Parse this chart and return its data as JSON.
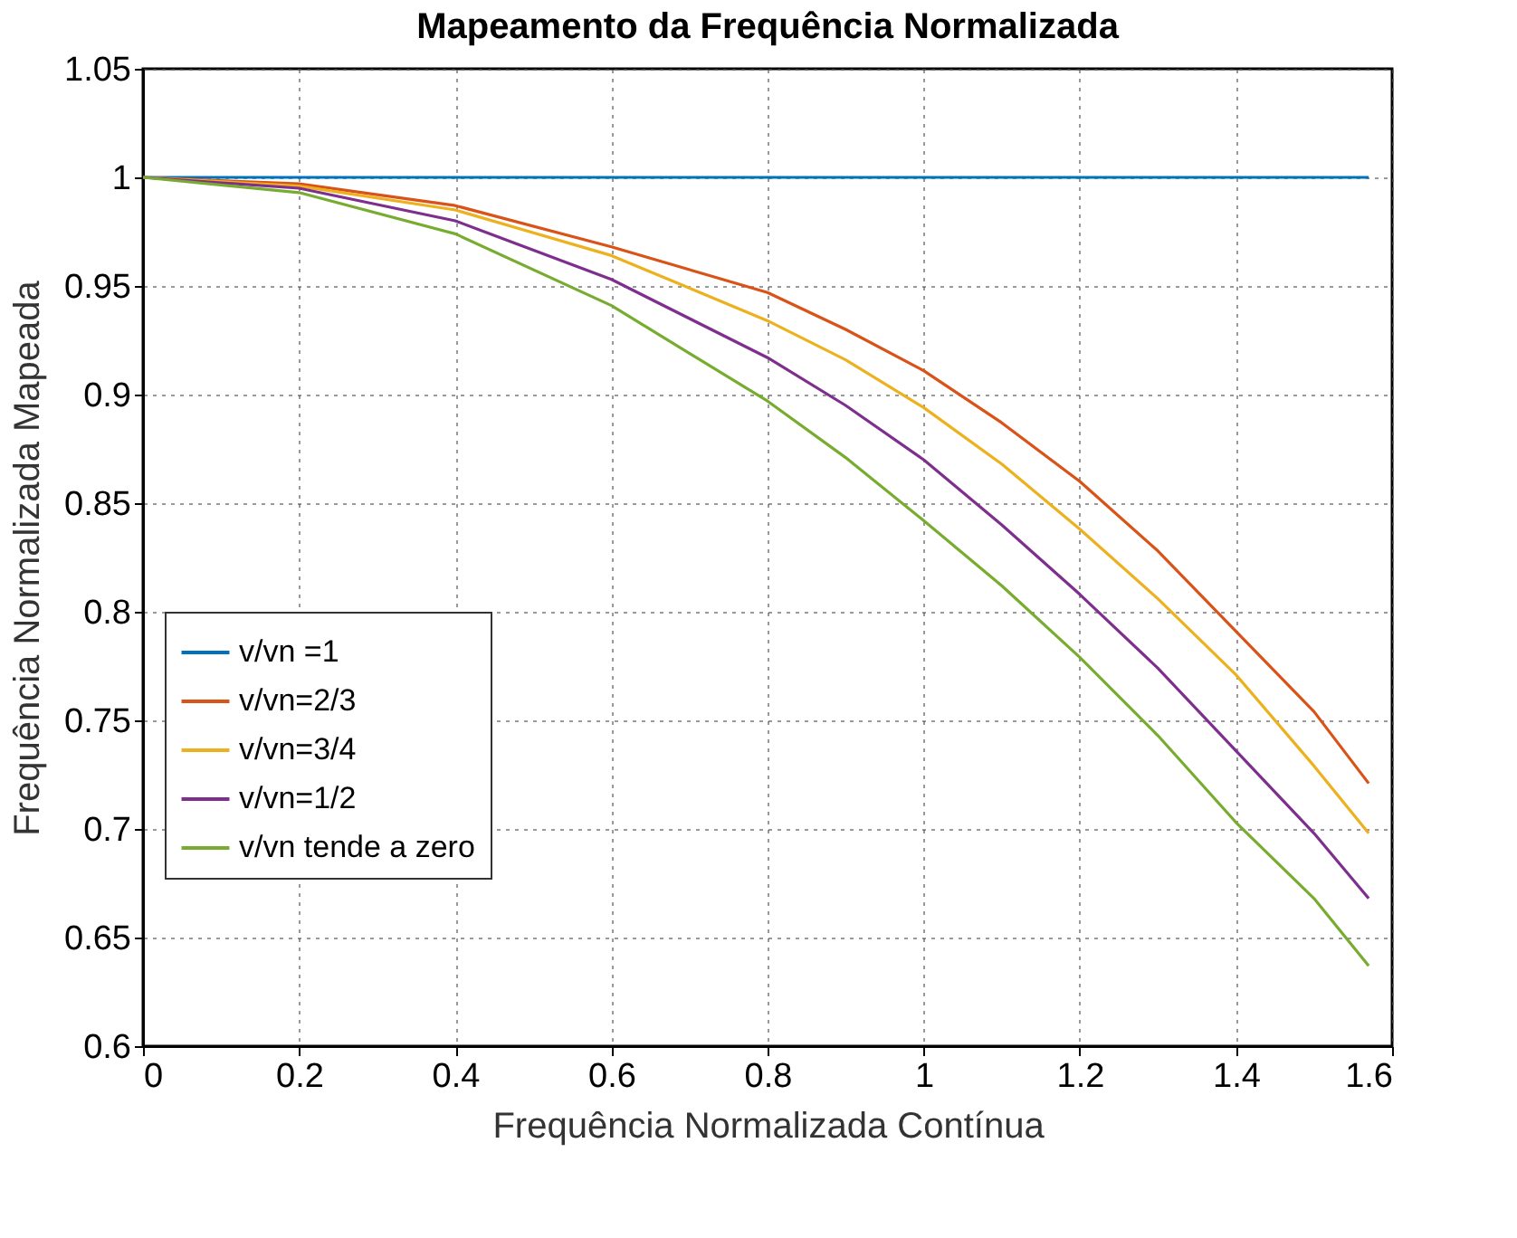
{
  "chart_data": {
    "type": "line",
    "title": "Mapeamento da Frequência Normalizada",
    "xlabel": "Frequência Normalizada Contínua",
    "ylabel": "Frequência Normalizada Mapeada",
    "x": [
      0,
      0.2,
      0.4,
      0.6,
      0.8,
      0.9,
      1.0,
      1.1,
      1.2,
      1.3,
      1.4,
      1.5,
      1.57
    ],
    "series": [
      {
        "name": "v/vn =1",
        "color": "#0072bd",
        "values": [
          1,
          1,
          1,
          1,
          1,
          1,
          1,
          1,
          1,
          1,
          1,
          1,
          1
        ]
      },
      {
        "name": "v/vn=2/3",
        "color": "#d95319",
        "values": [
          1,
          0.997,
          0.987,
          0.968,
          0.947,
          0.93,
          0.911,
          0.887,
          0.86,
          0.828,
          0.791,
          0.754,
          0.721
        ]
      },
      {
        "name": "v/vn=3/4",
        "color": "#edb120",
        "values": [
          1,
          0.996,
          0.985,
          0.964,
          0.934,
          0.916,
          0.894,
          0.868,
          0.838,
          0.806,
          0.771,
          0.729,
          0.698
        ]
      },
      {
        "name": "v/vn=1/2",
        "color": "#7e2f8e",
        "values": [
          1,
          0.995,
          0.98,
          0.953,
          0.917,
          0.895,
          0.87,
          0.84,
          0.808,
          0.774,
          0.736,
          0.698,
          0.668
        ]
      },
      {
        "name": "v/vn tende a zero",
        "color": "#77ac30",
        "values": [
          1,
          0.993,
          0.974,
          0.941,
          0.897,
          0.871,
          0.842,
          0.812,
          0.779,
          0.743,
          0.703,
          0.668,
          0.637
        ]
      }
    ],
    "xlim": [
      0,
      1.6
    ],
    "xticks": [
      0,
      0.2,
      0.4,
      0.6,
      0.8,
      1,
      1.2,
      1.4,
      1.6
    ],
    "ylim": [
      0.6,
      1.05
    ],
    "yticks": [
      0.6,
      0.65,
      0.7,
      0.75,
      0.8,
      0.85,
      0.9,
      0.95,
      1,
      1.05
    ],
    "grid": true,
    "legend": "left",
    "marker": "none",
    "line_style": "solid"
  }
}
